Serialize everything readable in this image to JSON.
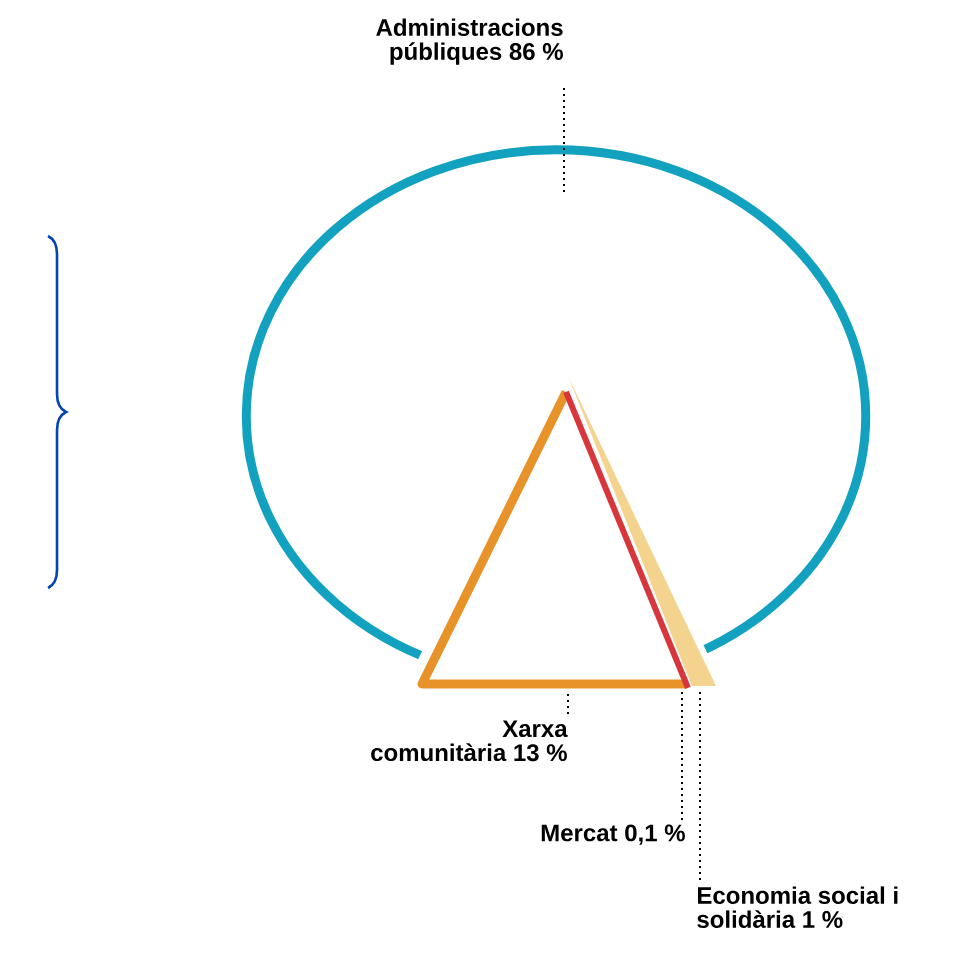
{
  "chart_data": {
    "type": "other",
    "categories": [
      "Administracions públiques",
      "Xarxa comunitària",
      "Mercat",
      "Economia social i solidària"
    ],
    "values": [
      86,
      13,
      0.1,
      1
    ],
    "value_labels": [
      "86 %",
      "13 %",
      "0,1 %",
      "1 %"
    ],
    "colors": [
      "#12a2bf",
      "#e8922a",
      "#d8363a",
      "#f4d38e"
    ]
  }
}
